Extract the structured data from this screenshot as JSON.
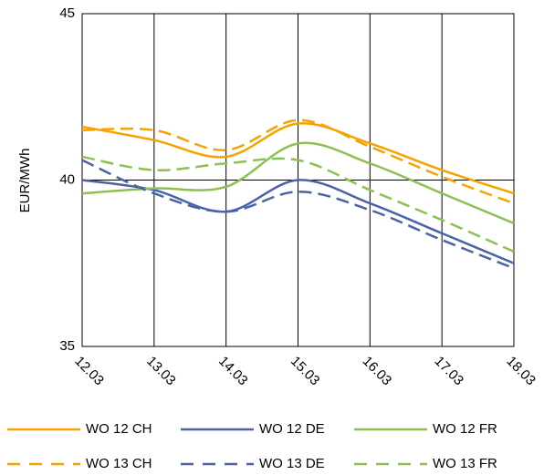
{
  "chart_data": {
    "type": "line",
    "y_label": "EUR/MWh",
    "categories": [
      "12.03",
      "13.03",
      "14.03",
      "15.03",
      "16.03",
      "17.03",
      "18.03"
    ],
    "ylim": [
      35,
      45
    ],
    "yticks": [
      35,
      40,
      45
    ],
    "grid": true,
    "legend": "bottom",
    "series": [
      {
        "name": "WO 12 CH",
        "color": "#f5a300",
        "style": "solid",
        "values": [
          41.6,
          41.2,
          40.7,
          41.7,
          41.1,
          40.3,
          39.6
        ]
      },
      {
        "name": "WO 12 DE",
        "color": "#4a62a8",
        "style": "solid",
        "values": [
          40.0,
          39.7,
          39.05,
          40.0,
          39.3,
          38.4,
          37.5
        ]
      },
      {
        "name": "WO 12 FR",
        "color": "#8cc152",
        "style": "solid",
        "values": [
          39.6,
          39.75,
          39.8,
          41.1,
          40.5,
          39.6,
          38.7
        ]
      },
      {
        "name": "WO 13 CH",
        "color": "#f5a300",
        "style": "dashed",
        "values": [
          41.5,
          41.5,
          40.9,
          41.8,
          41.0,
          40.1,
          39.3
        ]
      },
      {
        "name": "WO 13 DE",
        "color": "#4a62a8",
        "style": "dashed",
        "values": [
          40.6,
          39.6,
          39.05,
          39.65,
          39.1,
          38.2,
          37.35
        ]
      },
      {
        "name": "WO 13 FR",
        "color": "#8cc152",
        "style": "dashed",
        "values": [
          40.7,
          40.3,
          40.5,
          40.6,
          39.7,
          38.8,
          37.85
        ]
      }
    ]
  }
}
